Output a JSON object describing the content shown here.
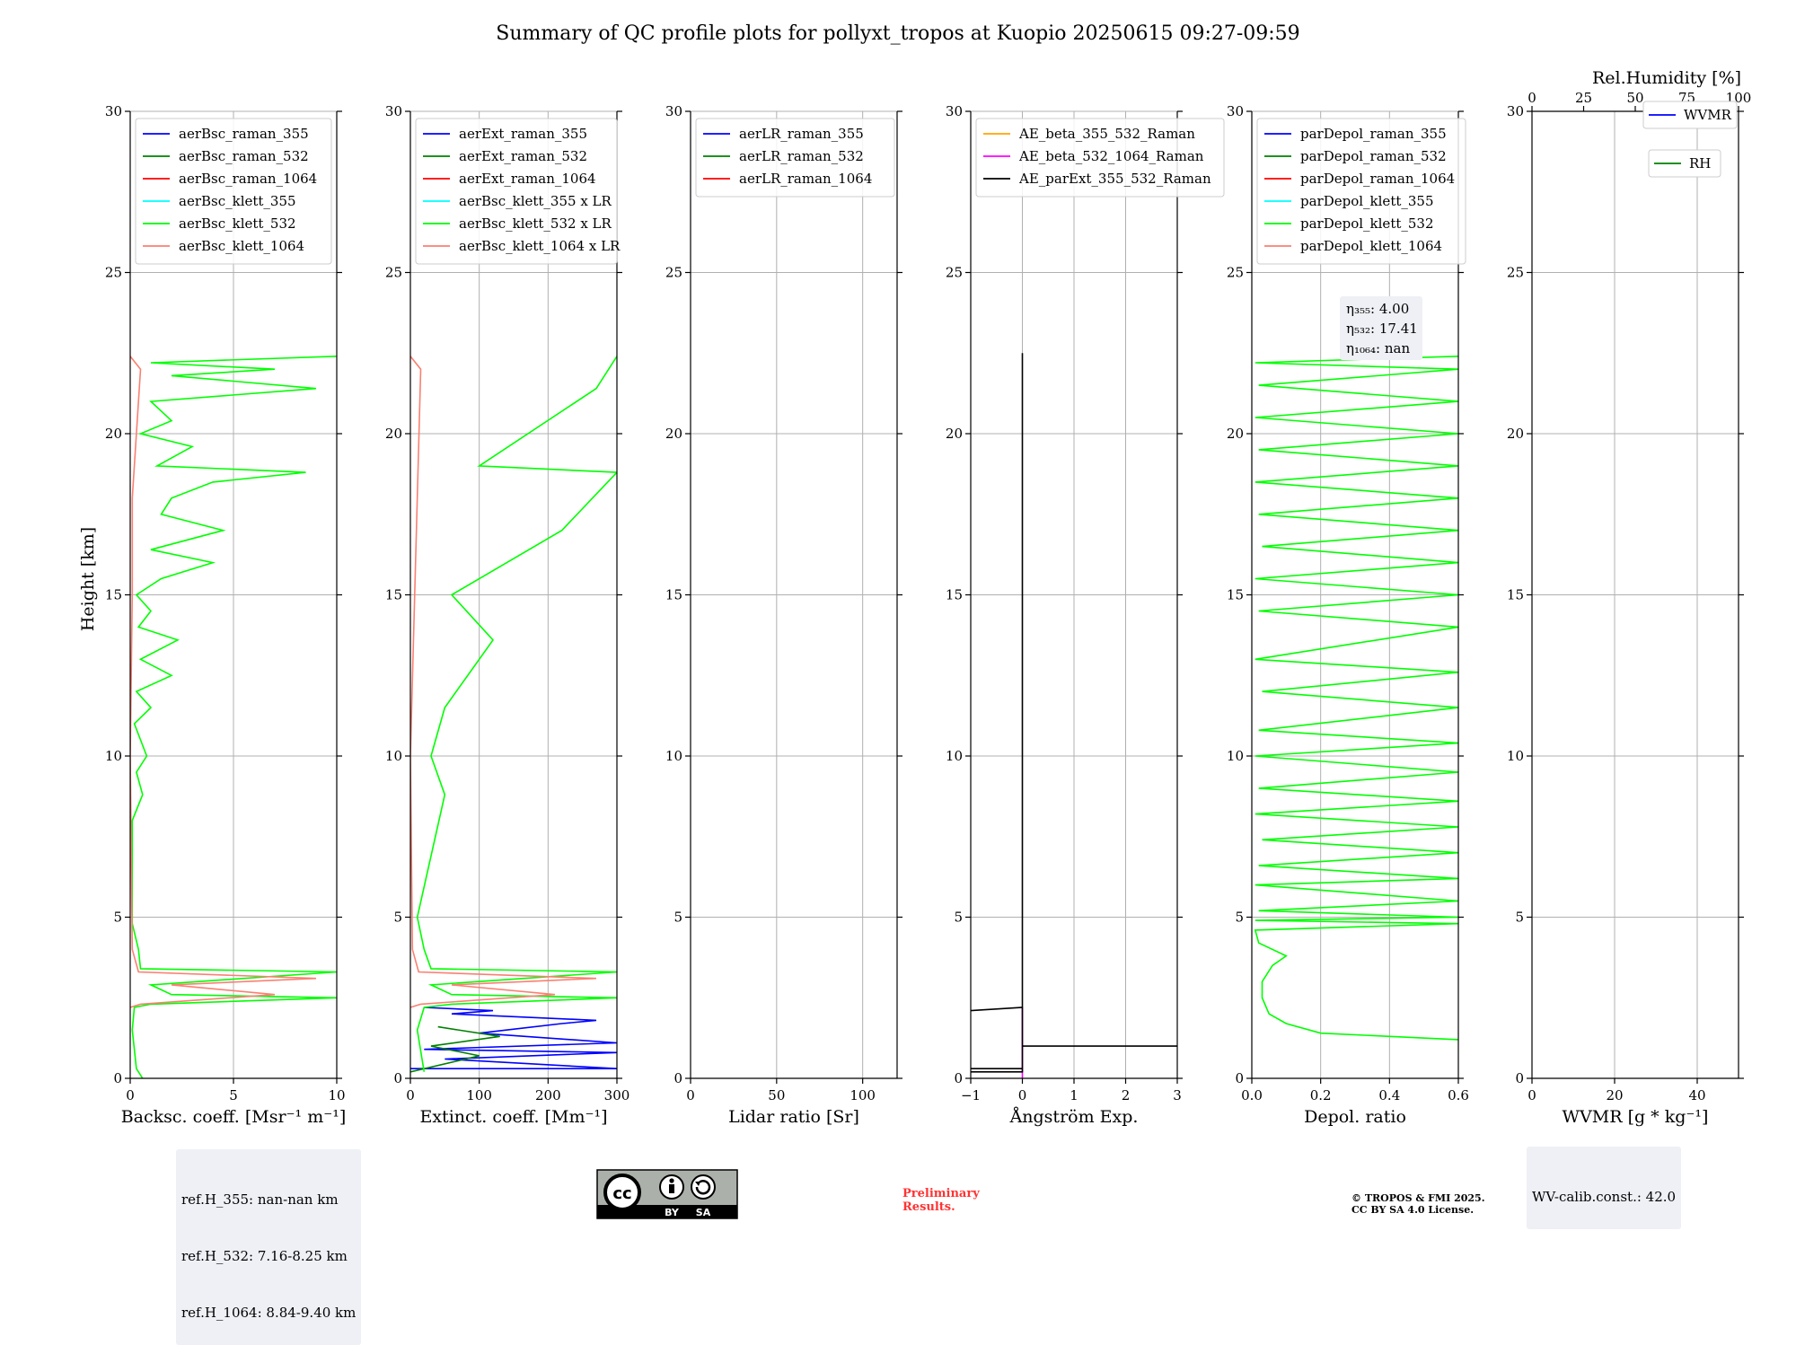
{
  "title": "Summary of QC profile plots for pollyxt_tropos at Kuopio 20250615 09:27-09:59",
  "ylabel": "Height [km]",
  "colors": {
    "blue": "#0000ff",
    "green": "#008000",
    "red": "#ff0000",
    "cyan": "#00ffff",
    "lime": "#00ff00",
    "salmon": "#fa8072",
    "orange": "#ffa500",
    "magenta": "#ff00ff",
    "black": "#000000"
  },
  "chart_data": [
    {
      "type": "line",
      "xlabel": "Backsc. coeff. [Msr⁻¹ m⁻¹]",
      "xlim": [
        0,
        10
      ],
      "ylim": [
        0,
        30
      ],
      "xticks": [
        "0",
        "5",
        "10"
      ],
      "xtick_vals": [
        0,
        5,
        10
      ],
      "legend": [
        "aerBsc_raman_355",
        "aerBsc_raman_532",
        "aerBsc_raman_1064",
        "aerBsc_klett_355",
        "aerBsc_klett_532",
        "aerBsc_klett_1064"
      ],
      "legend_colors": [
        "blue",
        "green",
        "red",
        "cyan",
        "lime",
        "salmon"
      ],
      "series": [
        {
          "color": "lime",
          "points": [
            [
              0.6,
              0
            ],
            [
              0.3,
              0.3
            ],
            [
              0.1,
              1.5
            ],
            [
              0.2,
              2.2
            ],
            [
              1,
              2.3
            ],
            [
              10,
              2.5
            ],
            [
              2,
              2.6
            ],
            [
              1,
              2.9
            ],
            [
              10,
              3.3
            ],
            [
              0.5,
              3.4
            ],
            [
              0.4,
              4
            ],
            [
              0.1,
              4.8
            ],
            [
              0.1,
              8
            ],
            [
              0.6,
              8.8
            ],
            [
              0.3,
              9.5
            ],
            [
              0.8,
              10
            ],
            [
              0.2,
              11
            ],
            [
              1,
              11.5
            ],
            [
              0.3,
              12
            ],
            [
              2,
              12.5
            ],
            [
              0.5,
              13
            ],
            [
              2.3,
              13.6
            ],
            [
              0.4,
              14
            ],
            [
              1,
              14.5
            ],
            [
              0.3,
              15
            ],
            [
              1.5,
              15.5
            ],
            [
              4,
              16
            ],
            [
              1,
              16.4
            ],
            [
              4.5,
              17
            ],
            [
              1.5,
              17.5
            ],
            [
              2,
              18
            ],
            [
              4,
              18.5
            ],
            [
              8.5,
              18.8
            ],
            [
              1.3,
              19
            ],
            [
              3,
              19.6
            ],
            [
              0.5,
              20
            ],
            [
              2,
              20.4
            ],
            [
              1,
              21
            ],
            [
              9,
              21.4
            ],
            [
              2,
              21.8
            ],
            [
              7,
              22
            ],
            [
              1,
              22.2
            ],
            [
              10,
              22.4
            ]
          ]
        },
        {
          "color": "salmon",
          "points": [
            [
              0,
              2.2
            ],
            [
              0.5,
              2.3
            ],
            [
              7,
              2.6
            ],
            [
              2,
              2.9
            ],
            [
              9,
              3.1
            ],
            [
              0.4,
              3.3
            ],
            [
              0.1,
              4
            ],
            [
              0,
              10
            ],
            [
              0.1,
              15
            ],
            [
              0.1,
              18
            ],
            [
              0.5,
              22
            ],
            [
              0,
              22.4
            ]
          ]
        }
      ]
    },
    {
      "type": "line",
      "xlabel": "Extinct. coeff. [Mm⁻¹]",
      "xlim": [
        0,
        300
      ],
      "ylim": [
        0,
        30
      ],
      "xticks": [
        "0",
        "100",
        "200",
        "300"
      ],
      "xtick_vals": [
        0,
        100,
        200,
        300
      ],
      "legend": [
        "aerExt_raman_355",
        "aerExt_raman_532",
        "aerExt_raman_1064",
        "aerBsc_klett_355 x LR",
        "aerBsc_klett_532 x LR",
        "aerBsc_klett_1064 x LR"
      ],
      "legend_colors": [
        "blue",
        "green",
        "red",
        "cyan",
        "lime",
        "salmon"
      ],
      "series": [
        {
          "color": "blue",
          "points": [
            [
              0,
              0.3
            ],
            [
              300,
              0.3
            ],
            [
              50,
              0.6
            ],
            [
              300,
              0.8
            ],
            [
              20,
              0.9
            ],
            [
              300,
              1.1
            ],
            [
              100,
              1.4
            ],
            [
              220,
              1.7
            ],
            [
              270,
              1.8
            ],
            [
              60,
              2
            ],
            [
              120,
              2.1
            ],
            [
              20,
              2.2
            ]
          ]
        },
        {
          "color": "green",
          "points": [
            [
              0,
              0.2
            ],
            [
              100,
              0.7
            ],
            [
              30,
              1
            ],
            [
              130,
              1.3
            ],
            [
              40,
              1.6
            ]
          ]
        },
        {
          "color": "lime",
          "points": [
            [
              20,
              0.2
            ],
            [
              10,
              1.5
            ],
            [
              20,
              2.2
            ],
            [
              60,
              2.3
            ],
            [
              300,
              2.5
            ],
            [
              60,
              2.6
            ],
            [
              30,
              2.9
            ],
            [
              300,
              3.3
            ],
            [
              30,
              3.4
            ],
            [
              20,
              4
            ],
            [
              10,
              5
            ],
            [
              50,
              8.8
            ],
            [
              30,
              10
            ],
            [
              50,
              11.5
            ],
            [
              120,
              13.6
            ],
            [
              60,
              15
            ],
            [
              220,
              17
            ],
            [
              300,
              18.8
            ],
            [
              100,
              19
            ],
            [
              270,
              21.4
            ],
            [
              300,
              22.4
            ]
          ]
        },
        {
          "color": "salmon",
          "points": [
            [
              0,
              2.2
            ],
            [
              15,
              2.3
            ],
            [
              210,
              2.6
            ],
            [
              60,
              2.9
            ],
            [
              270,
              3.1
            ],
            [
              12,
              3.3
            ],
            [
              3,
              4
            ],
            [
              0,
              10
            ],
            [
              15,
              22
            ],
            [
              0,
              22.4
            ]
          ]
        }
      ]
    },
    {
      "type": "line",
      "xlabel": "Lidar ratio [Sr]",
      "xlim": [
        0,
        120
      ],
      "ylim": [
        0,
        30
      ],
      "xticks": [
        "0",
        "50",
        "100"
      ],
      "xtick_vals": [
        0,
        50,
        100
      ],
      "legend": [
        "aerLR_raman_355",
        "aerLR_raman_532",
        "aerLR_raman_1064"
      ],
      "legend_colors": [
        "blue",
        "green",
        "red"
      ],
      "series": []
    },
    {
      "type": "line",
      "xlabel": "Ångström Exp.",
      "xlim": [
        -1,
        3
      ],
      "ylim": [
        0,
        30
      ],
      "xticks": [
        "−1",
        "0",
        "1",
        "2",
        "3"
      ],
      "xtick_vals": [
        -1,
        0,
        1,
        2,
        3
      ],
      "legend": [
        "AE_beta_355_532_Raman",
        "AE_beta_532_1064_Raman",
        "AE_parExt_355_532_Raman"
      ],
      "legend_colors": [
        "orange",
        "magenta",
        "black"
      ],
      "series": [
        {
          "color": "magenta",
          "points": [
            [
              0,
              0
            ],
            [
              0,
              2.2
            ]
          ]
        },
        {
          "color": "black",
          "points": [
            [
              -1,
              0.2
            ],
            [
              0,
              0.2
            ],
            [
              0,
              0.3
            ],
            [
              -1,
              0.3
            ],
            [
              0,
              0.3
            ],
            [
              0,
              1
            ],
            [
              3,
              1
            ],
            [
              0,
              1
            ],
            [
              0,
              2.2
            ],
            [
              -1,
              2.1
            ],
            [
              0,
              2.2
            ],
            [
              0,
              22.5
            ]
          ]
        }
      ]
    },
    {
      "type": "line",
      "xlabel": "Depol. ratio",
      "xlim": [
        0,
        0.6
      ],
      "ylim": [
        0,
        30
      ],
      "xticks": [
        "0.0",
        "0.2",
        "0.4",
        "0.6"
      ],
      "xtick_vals": [
        0,
        0.2,
        0.4,
        0.6
      ],
      "legend": [
        "parDepol_raman_355",
        "parDepol_raman_532",
        "parDepol_raman_1064",
        "parDepol_klett_355",
        "parDepol_klett_532",
        "parDepol_klett_1064"
      ],
      "legend_colors": [
        "blue",
        "green",
        "red",
        "cyan",
        "lime",
        "salmon"
      ],
      "annotation": [
        "η₃₅₅: 4.00",
        "η₅₃₂: 17.41",
        "η₁₀₆₄: nan"
      ],
      "series": [
        {
          "color": "lime",
          "points": [
            [
              0.6,
              1.2
            ],
            [
              0.2,
              1.4
            ],
            [
              0.1,
              1.7
            ],
            [
              0.05,
              2
            ],
            [
              0.03,
              2.5
            ],
            [
              0.03,
              3
            ],
            [
              0.06,
              3.5
            ],
            [
              0.1,
              3.8
            ],
            [
              0.02,
              4.2
            ],
            [
              0.01,
              4.6
            ],
            [
              0.6,
              4.8
            ],
            [
              0.01,
              4.9
            ],
            [
              0.6,
              5
            ],
            [
              0.02,
              5.2
            ],
            [
              0.6,
              5.5
            ],
            [
              0.01,
              6
            ],
            [
              0.6,
              6.2
            ],
            [
              0.02,
              6.6
            ],
            [
              0.6,
              7
            ],
            [
              0.03,
              7.4
            ],
            [
              0.6,
              7.8
            ],
            [
              0.01,
              8.2
            ],
            [
              0.6,
              8.6
            ],
            [
              0.02,
              9
            ],
            [
              0.6,
              9.5
            ],
            [
              0.01,
              10
            ],
            [
              0.6,
              10.4
            ],
            [
              0.02,
              10.8
            ],
            [
              0.6,
              11.5
            ],
            [
              0.03,
              12
            ],
            [
              0.6,
              12.6
            ],
            [
              0.01,
              13
            ],
            [
              0.6,
              14
            ],
            [
              0.02,
              14.5
            ],
            [
              0.6,
              15
            ],
            [
              0.01,
              15.5
            ],
            [
              0.6,
              16
            ],
            [
              0.03,
              16.5
            ],
            [
              0.6,
              17
            ],
            [
              0.02,
              17.5
            ],
            [
              0.6,
              18
            ],
            [
              0.01,
              18.5
            ],
            [
              0.6,
              19
            ],
            [
              0.02,
              19.5
            ],
            [
              0.6,
              20
            ],
            [
              0.01,
              20.5
            ],
            [
              0.6,
              21
            ],
            [
              0.02,
              21.5
            ],
            [
              0.6,
              22
            ],
            [
              0.01,
              22.2
            ],
            [
              0.6,
              22.4
            ]
          ]
        }
      ]
    },
    {
      "type": "line",
      "xlabel": "WVMR [g * kg⁻¹]",
      "xlim": [
        0,
        50
      ],
      "ylim": [
        0,
        30
      ],
      "xticks": [
        "0",
        "20",
        "40"
      ],
      "xtick_vals": [
        0,
        20,
        40
      ],
      "x2label": "Rel.Humidity [%]",
      "x2lim": [
        0,
        100
      ],
      "x2ticks": [
        "0",
        "25",
        "50",
        "75",
        "100"
      ],
      "x2tick_vals": [
        0,
        25,
        50,
        75,
        100
      ],
      "legend": [
        "WVMR",
        "RH"
      ],
      "legend_colors": [
        "blue",
        "green"
      ],
      "series": []
    }
  ],
  "yticks": [
    "0",
    "5",
    "10",
    "15",
    "20",
    "25",
    "30"
  ],
  "ytick_vals": [
    0,
    5,
    10,
    15,
    20,
    25,
    30
  ],
  "refbox": [
    "ref.H_355: nan-nan km",
    "ref.H_532: 7.16-8.25 km",
    "ref.H_1064: 8.84-9.40 km"
  ],
  "wvcalib": "WV-calib.const.: 42.0",
  "preliminary": [
    "Preliminary",
    "Results."
  ],
  "copyright": [
    "© TROPOS & FMI 2025.",
    "CC BY SA 4.0 License."
  ],
  "license_badge": {
    "by": "BY",
    "sa": "SA"
  }
}
